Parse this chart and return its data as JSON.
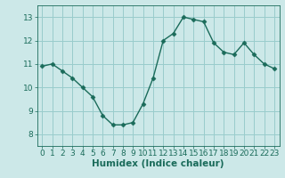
{
  "title": "",
  "xlabel": "Humidex (Indice chaleur)",
  "ylabel": "",
  "x": [
    0,
    1,
    2,
    3,
    4,
    5,
    6,
    7,
    8,
    9,
    10,
    11,
    12,
    13,
    14,
    15,
    16,
    17,
    18,
    19,
    20,
    21,
    22,
    23
  ],
  "y": [
    10.9,
    11.0,
    10.7,
    10.4,
    10.0,
    9.6,
    8.8,
    8.4,
    8.4,
    8.5,
    9.3,
    10.4,
    12.0,
    12.3,
    13.0,
    12.9,
    12.8,
    11.9,
    11.5,
    11.4,
    11.9,
    11.4,
    11.0,
    10.8
  ],
  "line_color": "#1a6b5a",
  "marker": "D",
  "marker_size": 2.5,
  "bg_color": "#cce8e8",
  "grid_color": "#99cccc",
  "axis_color": "#1a6b5a",
  "text_color": "#1a6b5a",
  "ylim": [
    7.5,
    13.5
  ],
  "xlim": [
    -0.5,
    23.5
  ],
  "yticks": [
    8,
    9,
    10,
    11,
    12,
    13
  ],
  "xticks": [
    0,
    1,
    2,
    3,
    4,
    5,
    6,
    7,
    8,
    9,
    10,
    11,
    12,
    13,
    14,
    15,
    16,
    17,
    18,
    19,
    20,
    21,
    22,
    23
  ],
  "xtick_labels": [
    "0",
    "1",
    "2",
    "3",
    "4",
    "5",
    "6",
    "7",
    "8",
    "9",
    "10",
    "11",
    "12",
    "13",
    "14",
    "15",
    "16",
    "17",
    "18",
    "19",
    "20",
    "21",
    "22",
    "23"
  ],
  "fontsize_ticks": 6.5,
  "fontsize_xlabel": 7.5,
  "linewidth": 1.0
}
